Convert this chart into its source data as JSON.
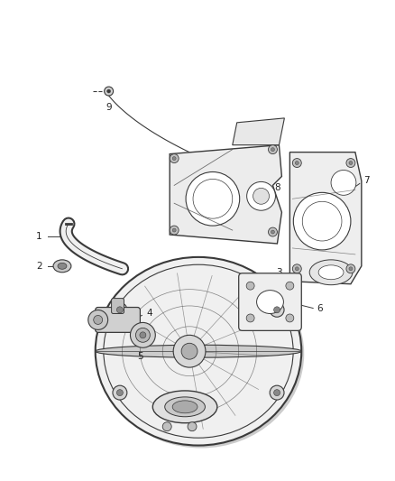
{
  "background_color": "#ffffff",
  "line_color": "#3a3a3a",
  "label_color": "#222222",
  "fig_width": 4.38,
  "fig_height": 5.33,
  "dpi": 100
}
